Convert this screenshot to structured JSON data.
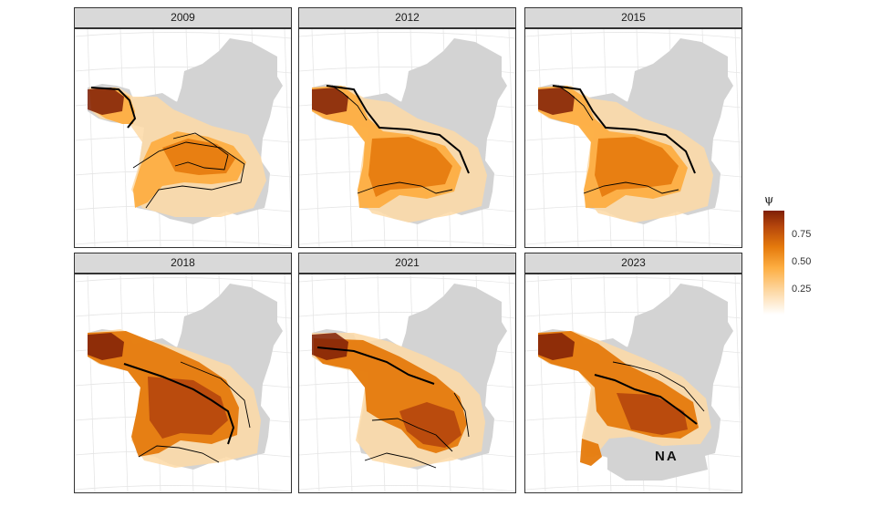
{
  "panels": [
    {
      "year": "2009",
      "level": 0.45,
      "style": "early"
    },
    {
      "year": "2012",
      "level": 0.55,
      "style": "sw"
    },
    {
      "year": "2015",
      "level": 0.58,
      "style": "sw"
    },
    {
      "year": "2018",
      "level": 0.72,
      "style": "wide"
    },
    {
      "year": "2021",
      "level": 0.68,
      "style": "mid"
    },
    {
      "year": "2023",
      "level": 0.78,
      "style": "na"
    }
  ],
  "na_label": "NA",
  "legend": {
    "title": "ψ",
    "ticks": [
      {
        "value": 0.75,
        "label": "0.75"
      },
      {
        "value": 0.5,
        "label": "0.50"
      },
      {
        "value": 0.25,
        "label": "0.25"
      }
    ],
    "range": [
      0.02,
      0.98
    ]
  },
  "colors": {
    "land": "#d3d3d3",
    "grid": "#e6e6e6",
    "scale": [
      "#ffffff",
      "#fdd9a6",
      "#fdae42",
      "#e57a0c",
      "#b5460c",
      "#7f1f06"
    ]
  }
}
